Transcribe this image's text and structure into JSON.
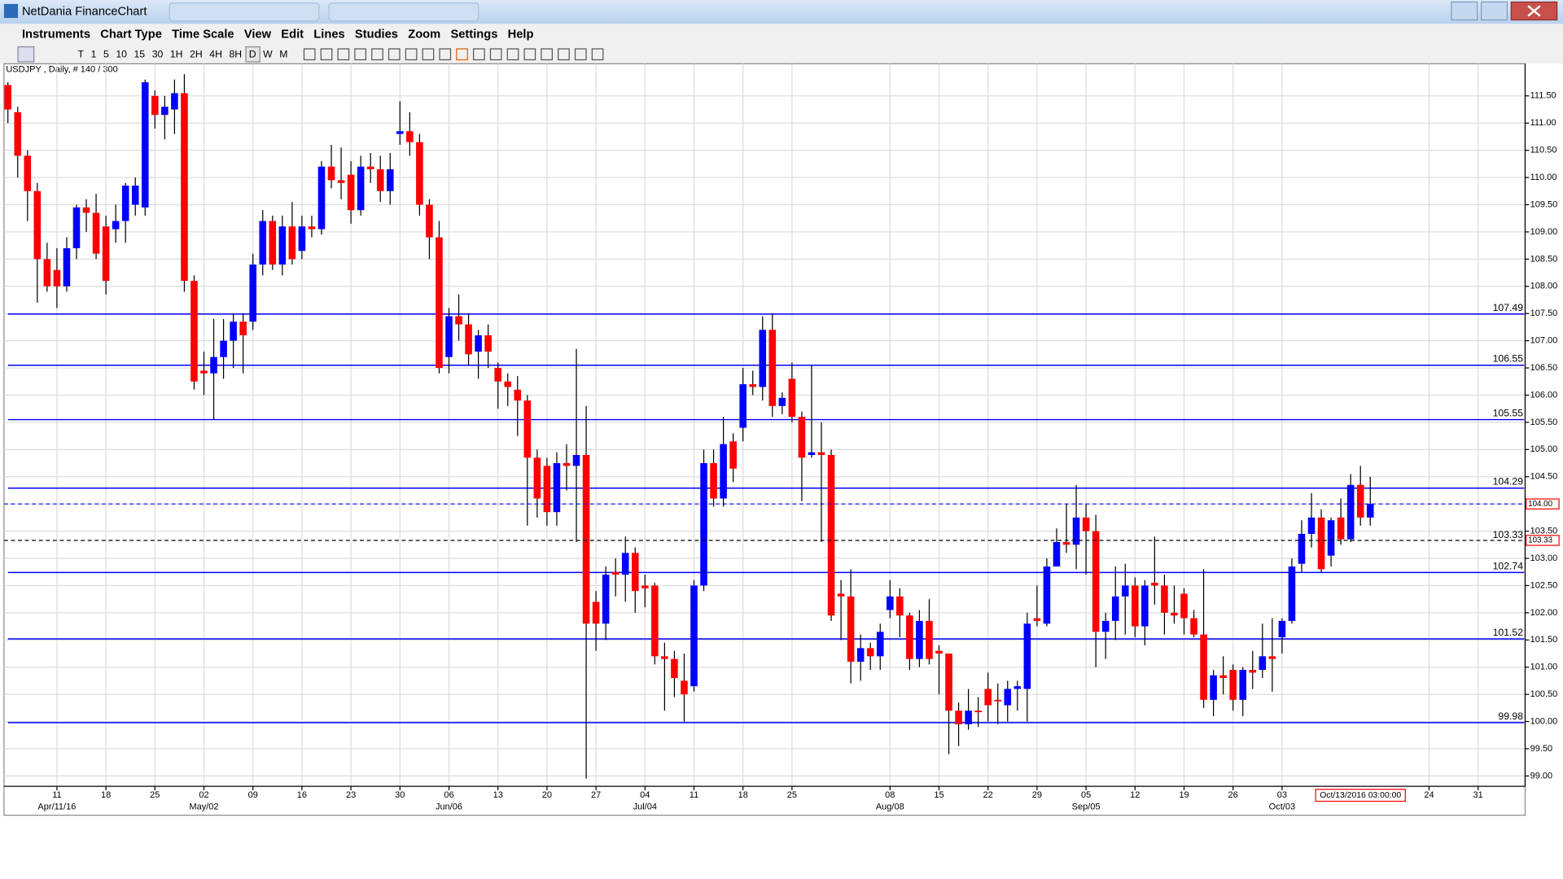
{
  "window": {
    "title": "NetDania FinanceChart"
  },
  "menu": [
    "Instruments",
    "Chart Type",
    "Time Scale",
    "View",
    "Edit",
    "Lines",
    "Studies",
    "Zoom",
    "Settings",
    "Help"
  ],
  "toolbar": [
    "T",
    "1",
    "5",
    "10",
    "15",
    "30",
    "1H",
    "2H",
    "4H",
    "8H",
    "D",
    "W",
    "M"
  ],
  "chart_data": {
    "type": "candlestick",
    "title": "USDJPY , Daily, # 140 / 300",
    "up_color": "#0000ff",
    "down_color": "#ff0000",
    "ylim": [
      98.81,
      112.09
    ],
    "yticks": [
      {
        "value": 99,
        "label": "99.00"
      },
      {
        "value": 99.5,
        "label": "99.50"
      },
      {
        "value": 100,
        "label": "100.00"
      },
      {
        "value": 100.5,
        "label": "100.50"
      },
      {
        "value": 101,
        "label": "101.00"
      },
      {
        "value": 101.5,
        "label": "101.50"
      },
      {
        "value": 102,
        "label": "102.00"
      },
      {
        "value": 102.5,
        "label": "102.50"
      },
      {
        "value": 103,
        "label": "103.00"
      },
      {
        "value": 103.5,
        "label": "103.50"
      },
      {
        "value": 104,
        "label": "104.00"
      },
      {
        "value": 104.5,
        "label": "104.50"
      },
      {
        "value": 105,
        "label": "105.00"
      },
      {
        "value": 105.5,
        "label": "105.50"
      },
      {
        "value": 106,
        "label": "106.00"
      },
      {
        "value": 106.5,
        "label": "106.50"
      },
      {
        "value": 107,
        "label": "107.00"
      },
      {
        "value": 107.5,
        "label": "107.50"
      },
      {
        "value": 108,
        "label": "108.00"
      },
      {
        "value": 108.5,
        "label": "108.50"
      },
      {
        "value": 109,
        "label": "109.00"
      },
      {
        "value": 109.5,
        "label": "109.50"
      },
      {
        "value": 110,
        "label": "110.00"
      },
      {
        "value": 110.5,
        "label": "110.50"
      },
      {
        "value": 111,
        "label": "111.00"
      },
      {
        "value": 111.5,
        "label": "111.50"
      }
    ],
    "xlim": [
      -0.4,
      154.8
    ],
    "xticks": [
      {
        "value": 5,
        "label": "11"
      },
      {
        "value": 10,
        "label": "18"
      },
      {
        "value": 15,
        "label": "25"
      },
      {
        "value": 20,
        "label": "02"
      },
      {
        "value": 25,
        "label": "09"
      },
      {
        "value": 30,
        "label": "16"
      },
      {
        "value": 35,
        "label": "23"
      },
      {
        "value": 40,
        "label": "30"
      },
      {
        "value": 45,
        "label": "06"
      },
      {
        "value": 50,
        "label": "13"
      },
      {
        "value": 55,
        "label": "20"
      },
      {
        "value": 60,
        "label": "27"
      },
      {
        "value": 65,
        "label": "04"
      },
      {
        "value": 70,
        "label": "11"
      },
      {
        "value": 75,
        "label": "18"
      },
      {
        "value": 80,
        "label": "25"
      },
      {
        "value": 90,
        "label": "08"
      },
      {
        "value": 95,
        "label": "15"
      },
      {
        "value": 100,
        "label": "22"
      },
      {
        "value": 105,
        "label": "29"
      },
      {
        "value": 110,
        "label": "05"
      },
      {
        "value": 115,
        "label": "12"
      },
      {
        "value": 120,
        "label": "19"
      },
      {
        "value": 125,
        "label": "26"
      },
      {
        "value": 130,
        "label": "03"
      },
      {
        "value": 145,
        "label": "24"
      },
      {
        "value": 150,
        "label": "31"
      }
    ],
    "xmonths": [
      {
        "value": 5,
        "label": "Apr/11/16"
      },
      {
        "value": 20,
        "label": "May/02"
      },
      {
        "value": 45,
        "label": "Jun/06"
      },
      {
        "value": 65,
        "label": "Jul/04"
      },
      {
        "value": 90,
        "label": "Aug/08"
      },
      {
        "value": 110,
        "label": "Sep/05"
      },
      {
        "value": 130,
        "label": "Oct/03"
      }
    ],
    "levels": [
      107.49,
      106.55,
      105.55,
      104.29,
      102.74,
      101.52,
      99.98
    ],
    "level_color": "#0000ff",
    "price_line": {
      "value": 104,
      "label": "104.00"
    },
    "cursor_line": 103.33,
    "cursor_time": {
      "index": 138,
      "label": "Oct/13/2016 03:00:00"
    },
    "candles": [
      [
        111.7,
        111.75,
        111,
        111.25
      ],
      [
        111.2,
        111.3,
        110,
        110.4
      ],
      [
        110.4,
        110.5,
        109.2,
        109.75
      ],
      [
        109.75,
        109.9,
        107.7,
        108.5
      ],
      [
        108.5,
        108.8,
        107.9,
        108
      ],
      [
        108.3,
        108.7,
        107.6,
        108
      ],
      [
        108,
        108.9,
        107.9,
        108.7
      ],
      [
        108.7,
        109.5,
        108.5,
        109.45
      ],
      [
        109.45,
        109.6,
        109,
        109.35
      ],
      [
        109.35,
        109.7,
        108.5,
        108.6
      ],
      [
        109.1,
        109.3,
        107.85,
        108.1
      ],
      [
        109.05,
        109.5,
        108.8,
        109.2
      ],
      [
        109.2,
        109.9,
        108.8,
        109.85
      ],
      [
        109.5,
        110,
        109.3,
        109.85
      ],
      [
        109.45,
        111.8,
        109.3,
        111.75
      ],
      [
        111.5,
        111.6,
        110.9,
        111.15
      ],
      [
        111.15,
        111.5,
        110.7,
        111.3
      ],
      [
        111.25,
        111.8,
        110.8,
        111.55
      ],
      [
        111.55,
        111.9,
        107.9,
        108.1
      ],
      [
        108.1,
        108.2,
        106.1,
        106.25
      ],
      [
        106.45,
        106.8,
        106,
        106.4
      ],
      [
        106.4,
        107.4,
        105.55,
        106.7
      ],
      [
        106.7,
        107.4,
        106.3,
        107
      ],
      [
        107,
        107.5,
        106.5,
        107.35
      ],
      [
        107.35,
        107.5,
        106.4,
        107.1
      ],
      [
        107.35,
        108.6,
        107.2,
        108.4
      ],
      [
        108.4,
        109.4,
        108.2,
        109.2
      ],
      [
        109.2,
        109.3,
        108.3,
        108.4
      ],
      [
        108.4,
        109.3,
        108.2,
        109.1
      ],
      [
        109.1,
        109.55,
        108.4,
        108.5
      ],
      [
        108.65,
        109.3,
        108.5,
        109.1
      ],
      [
        109.1,
        109.3,
        108.9,
        109.05
      ],
      [
        109.05,
        110.3,
        108.95,
        110.2
      ],
      [
        110.2,
        110.6,
        109.8,
        109.95
      ],
      [
        109.95,
        110.55,
        109.6,
        109.9
      ],
      [
        110.05,
        110.3,
        109.15,
        109.4
      ],
      [
        109.4,
        110.4,
        109.3,
        110.2
      ],
      [
        110.2,
        110.45,
        109.9,
        110.15
      ],
      [
        110.15,
        110.4,
        109.55,
        109.75
      ],
      [
        109.75,
        110.45,
        109.5,
        110.15
      ],
      [
        110.8,
        111.4,
        110.6,
        110.85
      ],
      [
        110.85,
        111.2,
        110.4,
        110.65
      ],
      [
        110.65,
        110.8,
        109.3,
        109.5
      ],
      [
        109.5,
        109.6,
        108.5,
        108.9
      ],
      [
        108.9,
        109.2,
        106.4,
        106.5
      ],
      [
        106.7,
        107.6,
        106.4,
        107.45
      ],
      [
        107.45,
        107.85,
        107,
        107.3
      ],
      [
        107.3,
        107.5,
        106.55,
        106.75
      ],
      [
        106.8,
        107.2,
        106.3,
        107.1
      ],
      [
        107.1,
        107.3,
        106.5,
        106.8
      ],
      [
        106.5,
        106.6,
        105.75,
        106.25
      ],
      [
        106.25,
        106.4,
        105.8,
        106.15
      ],
      [
        106.1,
        106.35,
        105.25,
        105.9
      ],
      [
        105.9,
        106,
        103.6,
        104.85
      ],
      [
        104.85,
        105,
        103.75,
        104.1
      ],
      [
        104.7,
        104.85,
        103.6,
        103.85
      ],
      [
        103.85,
        104.95,
        103.6,
        104.75
      ],
      [
        104.75,
        105.1,
        104.25,
        104.7
      ],
      [
        104.7,
        106.85,
        103.3,
        104.9
      ],
      [
        104.9,
        105.8,
        98.95,
        101.8
      ],
      [
        102.2,
        102.4,
        101.3,
        101.8
      ],
      [
        101.8,
        102.85,
        101.5,
        102.7
      ],
      [
        102.75,
        103,
        102.3,
        102.7
      ],
      [
        102.7,
        103.4,
        102.2,
        103.1
      ],
      [
        103.1,
        103.2,
        102,
        102.4
      ],
      [
        102.5,
        102.7,
        102.1,
        102.45
      ],
      [
        102.5,
        102.55,
        101.05,
        101.2
      ],
      [
        101.2,
        101.45,
        100.2,
        101.15
      ],
      [
        101.15,
        101.3,
        100.45,
        100.8
      ],
      [
        100.75,
        101.25,
        100,
        100.5
      ],
      [
        100.65,
        102.6,
        100.55,
        102.5
      ],
      [
        102.5,
        105,
        102.4,
        104.75
      ],
      [
        104.75,
        105,
        103.95,
        104.1
      ],
      [
        104.1,
        105.6,
        103.95,
        105.1
      ],
      [
        105.15,
        105.3,
        104.4,
        104.65
      ],
      [
        105.4,
        106.5,
        105.15,
        106.2
      ],
      [
        106.2,
        106.45,
        106,
        106.15
      ],
      [
        106.15,
        107.45,
        105.9,
        107.2
      ],
      [
        107.2,
        107.5,
        105.6,
        105.8
      ],
      [
        105.8,
        106.05,
        105.65,
        105.95
      ],
      [
        106.3,
        106.6,
        105.5,
        105.6
      ],
      [
        105.6,
        105.7,
        104.05,
        104.85
      ],
      [
        104.9,
        106.55,
        104.85,
        104.95
      ],
      [
        104.95,
        105.5,
        103.3,
        104.9
      ],
      [
        104.9,
        105,
        101.85,
        101.95
      ],
      [
        102.35,
        102.6,
        101.5,
        102.3
      ],
      [
        102.3,
        102.8,
        100.7,
        101.1
      ],
      [
        101.1,
        101.6,
        100.75,
        101.35
      ],
      [
        101.35,
        101.45,
        100.95,
        101.2
      ],
      [
        101.2,
        101.8,
        100.95,
        101.65
      ],
      [
        102.05,
        102.6,
        101.9,
        102.3
      ],
      [
        102.3,
        102.45,
        101.55,
        101.95
      ],
      [
        101.95,
        102,
        100.95,
        101.15
      ],
      [
        101.15,
        102.05,
        101,
        101.85
      ],
      [
        101.85,
        102.25,
        101.05,
        101.15
      ],
      [
        101.3,
        101.4,
        100.5,
        101.25
      ],
      [
        101.25,
        101.25,
        99.4,
        100.2
      ],
      [
        100.2,
        100.35,
        99.55,
        99.95
      ],
      [
        99.95,
        100.6,
        99.85,
        100.2
      ],
      [
        100.2,
        100.45,
        99.9,
        100.18
      ],
      [
        100.6,
        100.9,
        100,
        100.3
      ],
      [
        100.4,
        100.7,
        99.95,
        100.38
      ],
      [
        100.3,
        100.75,
        100,
        100.6
      ],
      [
        100.6,
        100.75,
        100.2,
        100.65
      ],
      [
        100.6,
        102,
        100,
        101.8
      ],
      [
        101.9,
        102.5,
        101.75,
        101.85
      ],
      [
        101.8,
        103,
        101.75,
        102.85
      ],
      [
        102.85,
        103.55,
        102.85,
        103.3
      ],
      [
        103.3,
        104,
        103.1,
        103.25
      ],
      [
        103.25,
        104.35,
        102.8,
        103.75
      ],
      [
        103.75,
        104,
        102.7,
        103.5
      ],
      [
        103.5,
        103.8,
        101,
        101.65
      ],
      [
        101.65,
        102,
        101.15,
        101.85
      ],
      [
        101.85,
        102.85,
        101.5,
        102.3
      ],
      [
        102.3,
        102.9,
        101.6,
        102.5
      ],
      [
        102.5,
        102.65,
        101.55,
        101.75
      ],
      [
        101.75,
        102.6,
        101.4,
        102.5
      ],
      [
        102.55,
        103.4,
        102.15,
        102.5
      ],
      [
        102.5,
        102.7,
        101.6,
        102
      ],
      [
        102,
        102.5,
        101.8,
        101.95
      ],
      [
        102.35,
        102.45,
        101.6,
        101.9
      ],
      [
        101.9,
        102.05,
        101.55,
        101.6
      ],
      [
        101.6,
        102.8,
        100.25,
        100.4
      ],
      [
        100.4,
        100.95,
        100.1,
        100.85
      ],
      [
        100.85,
        101.2,
        100.5,
        100.8
      ],
      [
        100.95,
        101.05,
        100.2,
        100.4
      ],
      [
        100.4,
        101,
        100.1,
        100.95
      ],
      [
        100.95,
        101.3,
        100.6,
        100.9
      ],
      [
        100.95,
        101.8,
        100.8,
        101.2
      ],
      [
        101.2,
        101.9,
        100.55,
        101.15
      ],
      [
        101.55,
        101.9,
        101.25,
        101.85
      ],
      [
        101.85,
        103,
        101.8,
        102.85
      ],
      [
        102.9,
        103.7,
        102.75,
        103.45
      ],
      [
        103.45,
        104.2,
        103.2,
        103.75
      ],
      [
        103.75,
        103.9,
        102.75,
        102.8
      ],
      [
        103.05,
        103.75,
        102.85,
        103.7
      ],
      [
        103.75,
        104.1,
        103.25,
        103.35
      ],
      [
        103.35,
        104.55,
        103.3,
        104.35
      ],
      [
        104.35,
        104.7,
        103.6,
        103.75
      ],
      [
        103.75,
        104.5,
        103.6,
        104
      ]
    ]
  }
}
